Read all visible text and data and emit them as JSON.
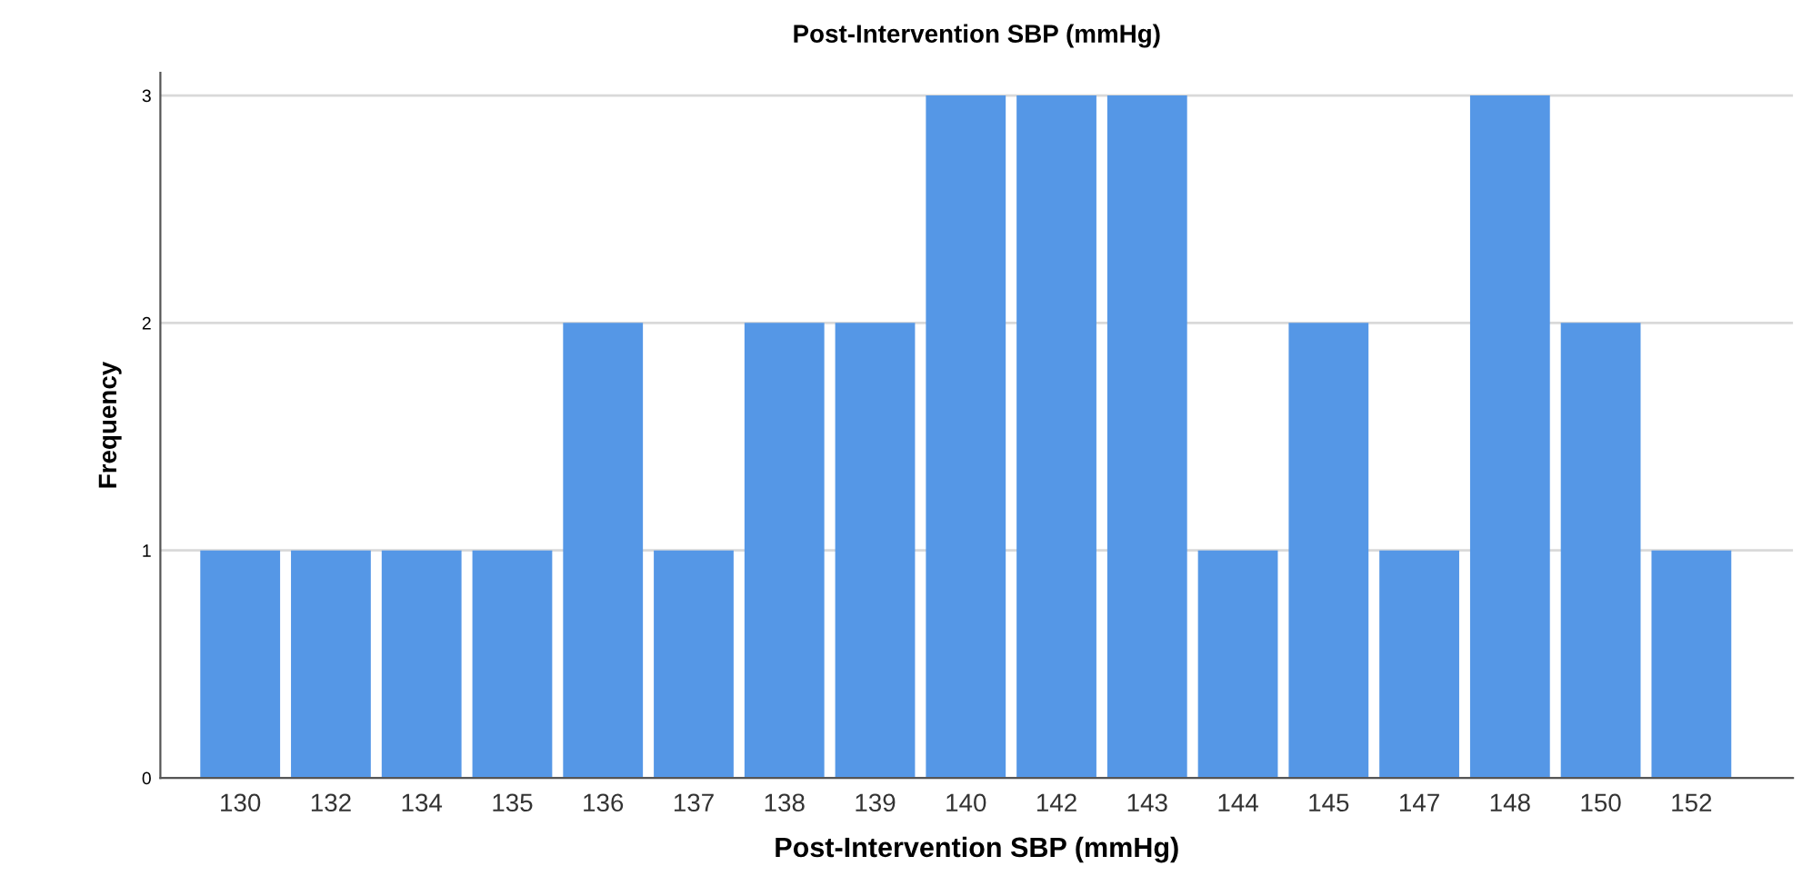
{
  "chart_data": {
    "type": "bar",
    "title": "Post-Intervention SBP (mmHg)",
    "xlabel": "Post-Intervention SBP (mmHg)",
    "ylabel": "Frequency",
    "categories": [
      "130",
      "132",
      "134",
      "135",
      "136",
      "137",
      "138",
      "139",
      "140",
      "142",
      "143",
      "144",
      "145",
      "147",
      "148",
      "150",
      "152"
    ],
    "values": [
      1,
      1,
      1,
      1,
      2,
      1,
      2,
      2,
      3,
      3,
      3,
      1,
      2,
      1,
      3,
      2,
      1
    ],
    "color": "#5597e6",
    "ylim": [
      0,
      3.1
    ],
    "yticks": [
      0,
      1,
      2,
      3
    ],
    "grid": "y"
  }
}
